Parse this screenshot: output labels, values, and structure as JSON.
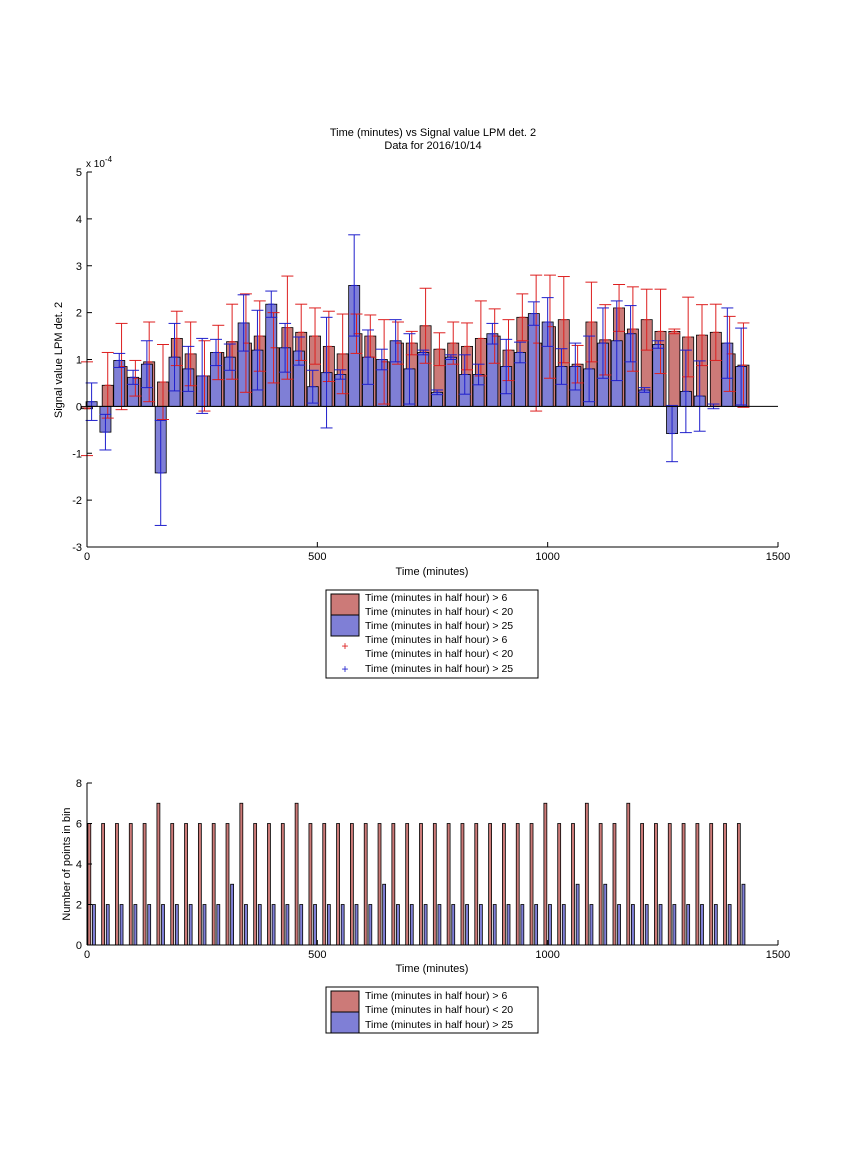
{
  "page": {
    "background": "#ffffff"
  },
  "colors": {
    "red_bar": "#cc7a78",
    "blue_bar": "#7f7fd6",
    "red_err": "#dd1f1f",
    "blue_err": "#1f1fcc",
    "axis": "#000000"
  },
  "chart_data": [
    {
      "type": "bar",
      "title": "Time (minutes) vs Signal value LPM det. 2",
      "subtitle": "Data for 2016/10/14",
      "xlabel": "Time (minutes)",
      "ylabel": "Signal value LPM det. 2",
      "y_scale_label": "x 10",
      "y_scale_exponent": "-4",
      "xlim": [
        0,
        1500
      ],
      "ylim": [
        -3,
        5
      ],
      "xticks": [
        0,
        500,
        1000,
        1500
      ],
      "yticks": [
        -3,
        -2,
        -1,
        0,
        1,
        2,
        3,
        4,
        5
      ],
      "grid": false,
      "legend": {
        "placement": "below",
        "entries": [
          "Time (minutes in half hour) > 6",
          "Time (minutes in half hour) < 20",
          "Time (minutes in half hour) > 25",
          "Time (minutes in half hour) > 6",
          "Time (minutes in half hour) < 20",
          "Time (minutes in half hour) > 25"
        ]
      },
      "series": [
        {
          "name": "Time (minutes in half hour) > 6 / < 20",
          "color": "#cc7a78",
          "error_color": "#dd1f1f",
          "x": [
            0,
            45,
            75,
            105,
            135,
            165,
            195,
            225,
            255,
            285,
            315,
            345,
            375,
            405,
            435,
            465,
            495,
            525,
            555,
            585,
            615,
            645,
            675,
            705,
            735,
            765,
            795,
            825,
            855,
            885,
            915,
            945,
            975,
            1005,
            1035,
            1065,
            1095,
            1125,
            1155,
            1185,
            1215,
            1245,
            1275,
            1305,
            1335,
            1365,
            1395,
            1425
          ],
          "values": [
            -0.05,
            0.45,
            0.85,
            0.6,
            0.95,
            0.52,
            1.45,
            1.12,
            0.65,
            1.15,
            1.38,
            1.35,
            1.5,
            1.25,
            1.68,
            1.58,
            1.5,
            1.28,
            1.12,
            1.55,
            1.5,
            0.95,
            1.35,
            1.35,
            1.72,
            1.22,
            1.35,
            1.28,
            1.45,
            1.5,
            1.2,
            1.9,
            1.35,
            1.7,
            1.85,
            0.9,
            1.8,
            1.42,
            2.1,
            1.65,
            1.85,
            1.6,
            1.6,
            1.48,
            1.52,
            1.58,
            1.12,
            0.88
          ],
          "errors": [
            1.0,
            0.7,
            0.92,
            0.38,
            0.85,
            0.8,
            0.58,
            0.68,
            0.75,
            0.58,
            0.8,
            1.05,
            0.75,
            0.75,
            1.1,
            0.6,
            0.6,
            0.75,
            0.85,
            0.42,
            0.45,
            0.9,
            0.45,
            0.25,
            0.8,
            0.35,
            0.45,
            0.5,
            0.8,
            0.58,
            0.65,
            0.5,
            1.45,
            1.1,
            0.92,
            0.4,
            0.85,
            0.75,
            0.5,
            0.9,
            0.65,
            0.9,
            0.05,
            0.85,
            0.65,
            0.6,
            0.8,
            0.9
          ]
        },
        {
          "name": "Time (minutes in half hour) > 25",
          "color": "#7f7fd6",
          "error_color": "#1f1fcc",
          "x": [
            10,
            40,
            70,
            100,
            130,
            160,
            190,
            220,
            250,
            280,
            310,
            340,
            370,
            400,
            430,
            460,
            490,
            520,
            550,
            580,
            610,
            640,
            670,
            700,
            730,
            760,
            790,
            820,
            850,
            880,
            910,
            940,
            970,
            1000,
            1030,
            1060,
            1090,
            1120,
            1150,
            1180,
            1210,
            1240,
            1270,
            1300,
            1330,
            1360,
            1390,
            1420
          ],
          "values": [
            0.1,
            -0.55,
            0.98,
            0.62,
            0.9,
            -1.42,
            1.05,
            0.8,
            0.65,
            1.15,
            1.05,
            1.78,
            1.2,
            2.18,
            1.25,
            1.18,
            0.42,
            0.72,
            0.68,
            2.58,
            1.05,
            1.0,
            1.4,
            0.8,
            1.15,
            0.3,
            1.05,
            0.68,
            0.68,
            1.55,
            0.85,
            1.15,
            1.98,
            1.8,
            0.85,
            0.85,
            0.8,
            1.35,
            1.4,
            1.55,
            0.35,
            1.32,
            -0.58,
            0.32,
            0.22,
            0.0,
            1.35,
            0.85
          ],
          "errors": [
            0.4,
            0.38,
            0.15,
            0.15,
            0.5,
            1.12,
            0.72,
            0.48,
            0.8,
            0.28,
            0.28,
            0.6,
            0.85,
            0.28,
            0.52,
            0.3,
            0.35,
            1.18,
            0.1,
            1.08,
            0.58,
            0.22,
            0.45,
            0.75,
            0.05,
            0.05,
            0.05,
            0.42,
            0.22,
            0.22,
            0.58,
            0.22,
            0.25,
            0.52,
            0.38,
            0.5,
            0.7,
            0.75,
            0.85,
            0.6,
            0.05,
            0.08,
            0.6,
            0.88,
            0.75,
            0.05,
            0.75,
            0.82
          ]
        }
      ]
    },
    {
      "type": "bar",
      "title": "",
      "xlabel": "Time (minutes)",
      "ylabel": "Number of points in bin",
      "xlim": [
        0,
        1500
      ],
      "ylim": [
        0,
        8
      ],
      "xticks": [
        0,
        500,
        1000,
        1500
      ],
      "yticks": [
        0,
        2,
        4,
        6,
        8
      ],
      "grid": false,
      "legend": {
        "placement": "below",
        "entries": [
          "Time (minutes in half hour) > 6",
          "Time (minutes in half hour) < 20",
          "Time (minutes in half hour) > 25"
        ]
      },
      "series": [
        {
          "name": "Time (minutes in half hour) > 6 / < 20",
          "color": "#cc7a78",
          "x": [
            5,
            35,
            65,
            95,
            125,
            155,
            185,
            215,
            245,
            275,
            305,
            335,
            365,
            395,
            425,
            455,
            485,
            515,
            545,
            575,
            605,
            635,
            665,
            695,
            725,
            755,
            785,
            815,
            845,
            875,
            905,
            935,
            965,
            995,
            1025,
            1055,
            1085,
            1115,
            1145,
            1175,
            1205,
            1235,
            1265,
            1295,
            1325,
            1355,
            1385,
            1415
          ],
          "values": [
            6,
            6,
            6,
            6,
            6,
            7,
            6,
            6,
            6,
            6,
            6,
            7,
            6,
            6,
            6,
            7,
            6,
            6,
            6,
            6,
            6,
            6,
            6,
            6,
            6,
            6,
            6,
            6,
            6,
            6,
            6,
            6,
            6,
            7,
            6,
            6,
            7,
            6,
            6,
            7,
            6,
            6,
            6,
            6,
            6,
            6,
            6,
            6
          ]
        },
        {
          "name": "Time (minutes in half hour) > 25",
          "color": "#7f7fd6",
          "x": [
            15,
            45,
            75,
            105,
            135,
            165,
            195,
            225,
            255,
            285,
            315,
            345,
            375,
            405,
            435,
            465,
            495,
            525,
            555,
            585,
            615,
            645,
            675,
            705,
            735,
            765,
            795,
            825,
            855,
            885,
            915,
            945,
            975,
            1005,
            1035,
            1065,
            1095,
            1125,
            1155,
            1185,
            1215,
            1245,
            1275,
            1305,
            1335,
            1365,
            1395,
            1425
          ],
          "values": [
            2,
            2,
            2,
            2,
            2,
            2,
            2,
            2,
            2,
            2,
            3,
            2,
            2,
            2,
            2,
            2,
            2,
            2,
            2,
            2,
            2,
            3,
            2,
            2,
            2,
            2,
            2,
            2,
            2,
            2,
            2,
            2,
            2,
            2,
            2,
            3,
            2,
            3,
            2,
            2,
            2,
            2,
            2,
            2,
            2,
            2,
            2,
            3
          ]
        }
      ]
    }
  ]
}
